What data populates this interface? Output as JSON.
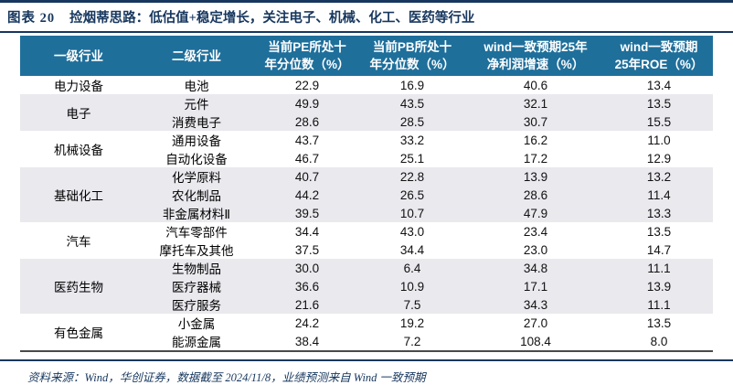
{
  "caption": {
    "label": "图表 20",
    "text": "捡烟蒂思路：低估值+稳定增长，关注电子、机械、化工、医药等行业"
  },
  "colors": {
    "navy_accent": "#17375e",
    "header_bg": "#1f6f9b",
    "band_bg": "#e9e9ee",
    "header_text": "#ffffff"
  },
  "table": {
    "headers": [
      {
        "line1": "一级行业",
        "line2": ""
      },
      {
        "line1": "二级行业",
        "line2": ""
      },
      {
        "line1": "当前PE所处十",
        "line2": "年分位数（%）"
      },
      {
        "line1": "当前PB所处十",
        "line2": "年分位数（%）"
      },
      {
        "line1": "wind一致预期25年",
        "line2": "净利润增速（%）"
      },
      {
        "line1": "wind一致预期",
        "line2": "25年ROE（%）"
      }
    ],
    "groups": [
      {
        "industry": "电力设备",
        "rows": [
          {
            "sub": "电池",
            "pe": "22.9",
            "pb": "16.9",
            "growth": "40.6",
            "roe": "13.4"
          }
        ]
      },
      {
        "industry": "电子",
        "rows": [
          {
            "sub": "元件",
            "pe": "49.9",
            "pb": "43.5",
            "growth": "32.1",
            "roe": "13.5"
          },
          {
            "sub": "消费电子",
            "pe": "28.6",
            "pb": "28.5",
            "growth": "30.7",
            "roe": "15.5"
          }
        ]
      },
      {
        "industry": "机械设备",
        "rows": [
          {
            "sub": "通用设备",
            "pe": "43.7",
            "pb": "33.2",
            "growth": "16.2",
            "roe": "11.0"
          },
          {
            "sub": "自动化设备",
            "pe": "46.7",
            "pb": "25.1",
            "growth": "17.2",
            "roe": "12.9"
          }
        ]
      },
      {
        "industry": "基础化工",
        "rows": [
          {
            "sub": "化学原料",
            "pe": "40.7",
            "pb": "22.8",
            "growth": "13.9",
            "roe": "13.2"
          },
          {
            "sub": "农化制品",
            "pe": "44.2",
            "pb": "26.5",
            "growth": "28.6",
            "roe": "11.4"
          },
          {
            "sub": "非金属材料Ⅱ",
            "pe": "39.5",
            "pb": "10.7",
            "growth": "47.9",
            "roe": "13.3"
          }
        ]
      },
      {
        "industry": "汽车",
        "rows": [
          {
            "sub": "汽车零部件",
            "pe": "34.4",
            "pb": "43.0",
            "growth": "23.4",
            "roe": "13.5"
          },
          {
            "sub": "摩托车及其他",
            "pe": "37.5",
            "pb": "34.4",
            "growth": "23.0",
            "roe": "14.7"
          }
        ]
      },
      {
        "industry": "医药生物",
        "rows": [
          {
            "sub": "生物制品",
            "pe": "30.0",
            "pb": "6.4",
            "growth": "34.8",
            "roe": "11.1"
          },
          {
            "sub": "医疗器械",
            "pe": "36.6",
            "pb": "10.9",
            "growth": "17.1",
            "roe": "13.9"
          },
          {
            "sub": "医疗服务",
            "pe": "21.6",
            "pb": "7.5",
            "growth": "34.3",
            "roe": "11.1"
          }
        ]
      },
      {
        "industry": "有色金属",
        "rows": [
          {
            "sub": "小金属",
            "pe": "24.2",
            "pb": "19.2",
            "growth": "27.0",
            "roe": "13.5"
          },
          {
            "sub": "能源金属",
            "pe": "38.4",
            "pb": "7.2",
            "growth": "108.4",
            "roe": "8.0"
          }
        ]
      }
    ]
  },
  "footer": {
    "text": "资料来源：Wind，华创证券，数据截至 2024/11/8，业绩预测来自 Wind 一致预期"
  }
}
